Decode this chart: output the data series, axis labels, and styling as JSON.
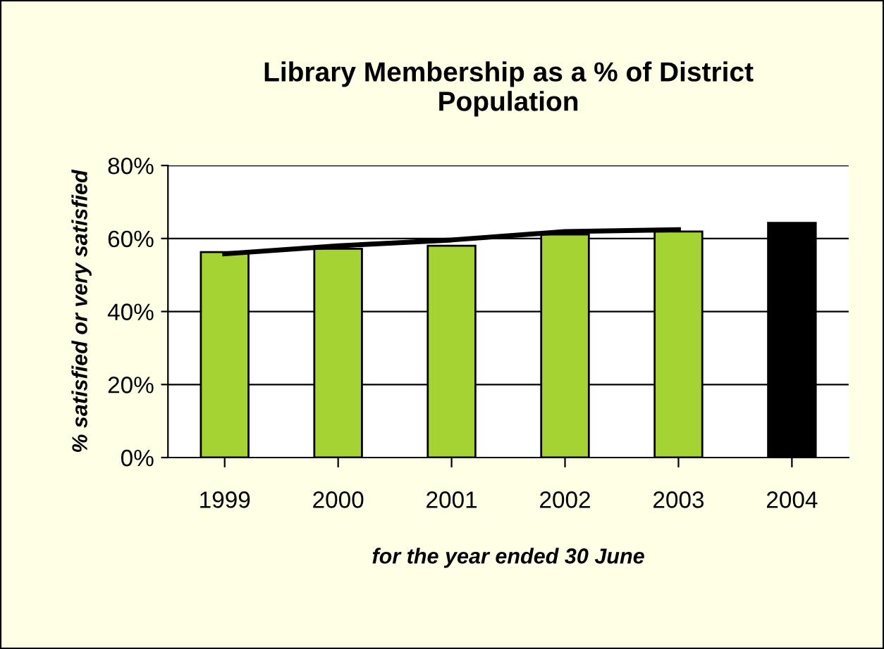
{
  "chart_data": {
    "type": "bar",
    "title": "Library Membership as a % of District\nPopulation",
    "xlabel": "for the year ended 30 June",
    "ylabel": "% satisfied or very satisfied",
    "categories": [
      "1999",
      "2000",
      "2001",
      "2002",
      "2003",
      "2004"
    ],
    "series": [
      {
        "values": [
          56.3,
          57.2,
          58,
          61.1,
          61.9,
          64.3
        ],
        "colors": [
          "#a6d334",
          "#a6d334",
          "#a6d334",
          "#a6d334",
          "#a6d334",
          "#000000"
        ]
      },
      {
        "type": "line",
        "color": "#000000",
        "values": [
          55.8,
          58,
          59.6,
          61.9,
          62.4,
          null
        ]
      }
    ],
    "ylim": [
      0,
      80
    ],
    "yticks": [
      {
        "value": 0,
        "label": "0%"
      },
      {
        "value": 20,
        "label": "20%"
      },
      {
        "value": 40,
        "label": "40%"
      },
      {
        "value": 60,
        "label": "60%"
      },
      {
        "value": 80,
        "label": "80%"
      }
    ],
    "grid": "y",
    "legend": false
  }
}
